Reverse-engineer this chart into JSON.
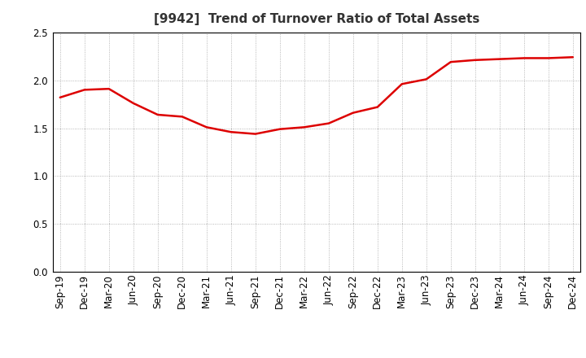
{
  "title": "[9942]  Trend of Turnover Ratio of Total Assets",
  "x_labels": [
    "Sep-19",
    "Dec-19",
    "Mar-20",
    "Jun-20",
    "Sep-20",
    "Dec-20",
    "Mar-21",
    "Jun-21",
    "Sep-21",
    "Dec-21",
    "Mar-22",
    "Jun-22",
    "Sep-22",
    "Dec-22",
    "Mar-23",
    "Jun-23",
    "Sep-23",
    "Dec-23",
    "Mar-24",
    "Jun-24",
    "Sep-24",
    "Dec-24"
  ],
  "y_values": [
    1.82,
    1.9,
    1.91,
    1.76,
    1.64,
    1.62,
    1.51,
    1.46,
    1.44,
    1.49,
    1.51,
    1.55,
    1.66,
    1.72,
    1.96,
    2.01,
    2.19,
    2.21,
    2.22,
    2.23,
    2.23,
    2.24
  ],
  "line_color": "#dd0000",
  "line_width": 1.8,
  "ylim": [
    0.0,
    2.5
  ],
  "yticks": [
    0.0,
    0.5,
    1.0,
    1.5,
    2.0,
    2.5
  ],
  "bg_color": "#ffffff",
  "plot_bg_color": "#ffffff",
  "grid_color": "#999999",
  "title_fontsize": 11,
  "tick_fontsize": 8.5
}
